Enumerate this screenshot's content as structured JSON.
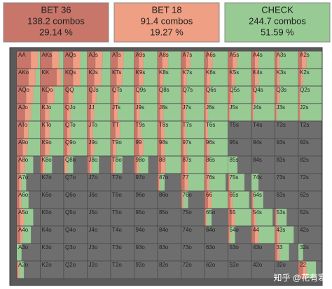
{
  "header": {
    "actions": [
      {
        "name": "BET 36",
        "combos": "138.2 combos",
        "percent": "29.14 %",
        "color": "#c8766a"
      },
      {
        "name": "BET 18",
        "combos": "91.4 combos",
        "percent": "19.27 %",
        "color": "#ee9f84"
      },
      {
        "name": "CHECK",
        "combos": "244.7 combos",
        "percent": "51.59 %",
        "color": "#98cb94"
      }
    ]
  },
  "grid": {
    "labels": [
      [
        "AA",
        "AKs",
        "AQs",
        "AJs",
        "ATs",
        "A9s",
        "A8s",
        "A7s",
        "A6s",
        "A5s",
        "A4s",
        "A3s",
        "A2s"
      ],
      [
        "AKo",
        "KK",
        "KQs",
        "KJs",
        "KTs",
        "K9s",
        "K8s",
        "K7s",
        "K6s",
        "K5s",
        "K4s",
        "K3s",
        "K2s"
      ],
      [
        "AQo",
        "KQo",
        "QQ",
        "QJs",
        "QTs",
        "Q9s",
        "Q8s",
        "Q7s",
        "Q6s",
        "Q5s",
        "Q4s",
        "Q3s",
        "Q2s"
      ],
      [
        "AJo",
        "KJo",
        "QJo",
        "JJ",
        "JTs",
        "J9s",
        "J8s",
        "J7s",
        "J6s",
        "J5s",
        "J4s",
        "J3s",
        "J2s"
      ],
      [
        "ATo",
        "KTo",
        "QTo",
        "JTo",
        "TT",
        "T9s",
        "T8s",
        "T7s",
        "T6s",
        "T5s",
        "T4s",
        "T3s",
        "T2s"
      ],
      [
        "A9o",
        "K9o",
        "Q9o",
        "J9o",
        "T9o",
        "99",
        "98s",
        "97s",
        "96s",
        "95s",
        "94s",
        "93s",
        "92s"
      ],
      [
        "A8o",
        "K8o",
        "Q8o",
        "J8o",
        "T8o",
        "98o",
        "88",
        "87s",
        "86s",
        "85s",
        "84s",
        "83s",
        "82s"
      ],
      [
        "A7o",
        "K7o",
        "Q7o",
        "J7o",
        "T7o",
        "97o",
        "87o",
        "77",
        "76s",
        "75s",
        "74s",
        "73s",
        "72s"
      ],
      [
        "A6o",
        "K6o",
        "Q6o",
        "J6o",
        "T6o",
        "96o",
        "86o",
        "76o",
        "66",
        "65s",
        "64s",
        "63s",
        "62s"
      ],
      [
        "A5o",
        "K5o",
        "Q5o",
        "J5o",
        "T5o",
        "95o",
        "85o",
        "75o",
        "65o",
        "55",
        "54s",
        "53s",
        "52s"
      ],
      [
        "A4o",
        "K4o",
        "Q4o",
        "J4o",
        "T4o",
        "94o",
        "84o",
        "74o",
        "64o",
        "54o",
        "44",
        "43s",
        "42s"
      ],
      [
        "A3o",
        "K3o",
        "Q3o",
        "J3o",
        "T3o",
        "93o",
        "83o",
        "73o",
        "63o",
        "53o",
        "43o",
        "33",
        "32s"
      ],
      [
        "A2o",
        "K2o",
        "Q2o",
        "J2o",
        "T2o",
        "92o",
        "82o",
        "72o",
        "62o",
        "52o",
        "42o",
        "32o",
        "22"
      ]
    ],
    "freqs": [
      [
        [
          60,
          30,
          10
        ],
        [
          50,
          30,
          20
        ],
        [
          40,
          30,
          30
        ],
        [
          35,
          30,
          35
        ],
        [
          30,
          25,
          45
        ],
        [
          20,
          20,
          60
        ],
        [
          20,
          25,
          55
        ],
        [
          20,
          20,
          60
        ],
        [
          15,
          20,
          65
        ],
        [
          20,
          20,
          60
        ],
        [
          15,
          15,
          70
        ],
        [
          10,
          10,
          80
        ],
        [
          15,
          20,
          65
        ]
      ],
      [
        [
          50,
          30,
          20
        ],
        [
          70,
          20,
          10
        ],
        [
          40,
          30,
          30
        ],
        [
          30,
          30,
          40
        ],
        [
          25,
          25,
          50
        ],
        [
          20,
          20,
          60
        ],
        [
          10,
          15,
          75
        ],
        [
          10,
          15,
          75
        ],
        [
          10,
          15,
          75
        ],
        [
          15,
          15,
          70
        ],
        [
          15,
          15,
          70
        ],
        [
          10,
          10,
          80
        ],
        [
          10,
          10,
          80
        ]
      ],
      [
        [
          40,
          30,
          30
        ],
        [
          30,
          30,
          40
        ],
        [
          20,
          20,
          60
        ],
        [
          20,
          20,
          60
        ],
        [
          15,
          20,
          65
        ],
        [
          10,
          15,
          75
        ],
        [
          10,
          10,
          80
        ],
        [
          10,
          10,
          80
        ],
        [
          10,
          10,
          80
        ],
        [
          10,
          10,
          80
        ],
        [
          10,
          10,
          80
        ],
        [
          10,
          10,
          80
        ],
        [
          5,
          5,
          90
        ]
      ],
      [
        [
          35,
          25,
          40
        ],
        [
          20,
          20,
          60
        ],
        [
          15,
          15,
          70
        ],
        [
          15,
          15,
          70
        ],
        [
          15,
          15,
          70
        ],
        [
          10,
          15,
          75
        ],
        [
          10,
          15,
          75
        ],
        [
          10,
          10,
          80
        ],
        [
          5,
          10,
          85
        ],
        [
          5,
          5,
          90
        ],
        [
          5,
          5,
          90
        ],
        [
          5,
          5,
          90
        ],
        [
          5,
          5,
          90
        ]
      ],
      [
        [
          30,
          20,
          50
        ],
        [
          20,
          20,
          60
        ],
        [
          15,
          15,
          70
        ],
        [
          10,
          15,
          75
        ],
        [
          20,
          20,
          60
        ],
        [
          15,
          15,
          70
        ],
        [
          15,
          15,
          70
        ],
        [
          10,
          10,
          80
        ],
        [
          5,
          10,
          85
        ],
        null,
        null,
        null,
        null
      ],
      [
        [
          25,
          20,
          55
        ],
        [
          20,
          20,
          60
        ],
        [
          15,
          15,
          70
        ],
        [
          15,
          15,
          70
        ],
        [
          10,
          15,
          75
        ],
        [
          20,
          20,
          60
        ],
        [
          15,
          15,
          70
        ],
        [
          10,
          15,
          75
        ],
        [
          10,
          10,
          80
        ],
        null,
        null,
        null,
        null
      ],
      [
        [
          15,
          20,
          35
        ],
        [
          10,
          10,
          30
        ],
        [
          5,
          10,
          25
        ],
        [
          10,
          10,
          30
        ],
        [
          10,
          10,
          30
        ],
        [
          10,
          10,
          40
        ],
        [
          15,
          20,
          65
        ],
        [
          15,
          15,
          70
        ],
        [
          10,
          10,
          80
        ],
        [
          0,
          0,
          40
        ],
        null,
        null,
        null
      ],
      [
        [
          10,
          10,
          20
        ],
        null,
        null,
        null,
        null,
        null,
        [
          5,
          5,
          20
        ],
        [
          15,
          15,
          70
        ],
        [
          10,
          10,
          70
        ],
        [
          5,
          5,
          60
        ],
        [
          0,
          0,
          30
        ],
        null,
        null
      ],
      [
        [
          10,
          10,
          30
        ],
        null,
        null,
        null,
        null,
        null,
        null,
        [
          5,
          5,
          20
        ],
        [
          15,
          15,
          70
        ],
        [
          10,
          10,
          70
        ],
        [
          5,
          5,
          40
        ],
        null,
        null
      ],
      [
        [
          15,
          15,
          40
        ],
        null,
        null,
        null,
        null,
        null,
        null,
        null,
        [
          5,
          5,
          20
        ],
        [
          15,
          15,
          70
        ],
        [
          10,
          10,
          70
        ],
        [
          5,
          5,
          40
        ],
        null
      ],
      [
        [
          15,
          10,
          35
        ],
        null,
        null,
        null,
        null,
        null,
        null,
        null,
        null,
        [
          5,
          5,
          20
        ],
        [
          15,
          15,
          70
        ],
        [
          10,
          10,
          60
        ],
        null
      ],
      [
        [
          0,
          0,
          20
        ],
        null,
        null,
        null,
        null,
        null,
        null,
        null,
        null,
        null,
        null,
        [
          10,
          10,
          40
        ],
        [
          0,
          0,
          20
        ]
      ],
      [
        [
          5,
          5,
          20
        ],
        null,
        null,
        null,
        null,
        null,
        null,
        null,
        null,
        null,
        null,
        null,
        [
          20,
          15,
          40
        ]
      ]
    ]
  },
  "watermark": "知乎 @花有寒"
}
